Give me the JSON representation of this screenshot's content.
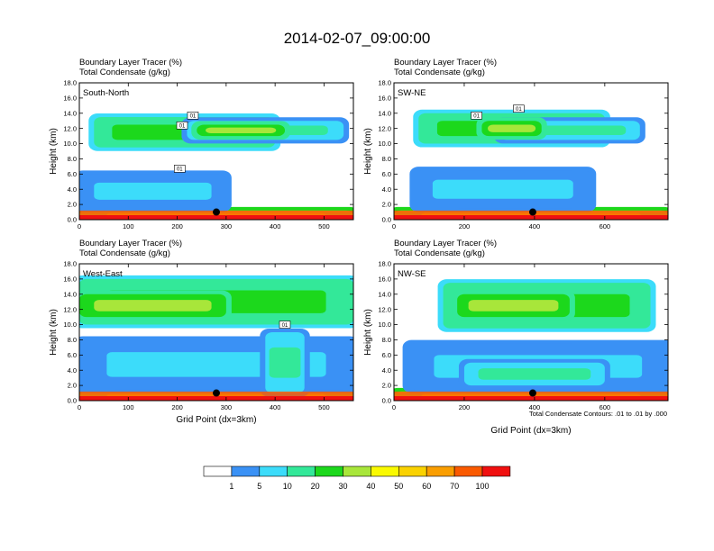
{
  "figure": {
    "title": "2014-02-07_09:00:00",
    "footnote": "Total Condensate Contours: .01 to .01 by .000"
  },
  "colorbar": {
    "levels": [
      "1",
      "5",
      "10",
      "20",
      "30",
      "40",
      "50",
      "60",
      "70",
      "100"
    ],
    "colors": [
      "#ffffff",
      "#3a91f5",
      "#3cdcfa",
      "#33e899",
      "#1cd81c",
      "#a8e63a",
      "#fafa00",
      "#fad200",
      "#fa9e00",
      "#fa5a00",
      "#f01010"
    ]
  },
  "chart_data": [
    {
      "type": "heatmap",
      "panel": "South-North",
      "line1": "Boundary Layer Tracer   (%)",
      "line2": "Total Condensate   (g/kg)",
      "ylabel": "Height (km)",
      "xlabel": "",
      "xlim": [
        0,
        560
      ],
      "ylim": [
        0,
        18
      ],
      "xticks": [
        "0",
        "100",
        "200",
        "300",
        "400",
        "500"
      ],
      "xtick_values": [
        0,
        100,
        200,
        300,
        400,
        500
      ],
      "yticks": [
        "0.0",
        "2.0",
        "4.0",
        "6.0",
        "8.0",
        "10.0",
        "12.0",
        "14.0",
        "16.0",
        "18.0"
      ],
      "contour_labels": [
        {
          "text": "01",
          "x": 232,
          "y": 13.7
        },
        {
          "text": "01",
          "x": 210,
          "y": 12.4
        },
        {
          "text": "01",
          "x": 205,
          "y": 6.7
        }
      ],
      "marker": {
        "x": 280,
        "y": 1.0
      },
      "bands": [
        {
          "level": 6,
          "x0": 0,
          "x1": 560,
          "y0": 0.0,
          "y1": 1.2
        },
        {
          "level": 4,
          "x0": 30,
          "x1": 400,
          "y0": 9.5,
          "y1": 13.5
        },
        {
          "level": 3,
          "x0": 220,
          "x1": 540,
          "y0": 10.5,
          "y1": 13.0
        },
        {
          "level": 2,
          "x0": 0,
          "x1": 300,
          "y0": 1.5,
          "y1": 6.0
        },
        {
          "level": 5,
          "x0": 240,
          "x1": 420,
          "y0": 11.0,
          "y1": 12.5
        }
      ]
    },
    {
      "type": "heatmap",
      "panel": "SW-NE",
      "line1": "Boundary Layer Tracer   (%)",
      "line2": "Total Condensate   (g/kg)",
      "ylabel": "Height (km)",
      "xlabel": "",
      "xlim": [
        0,
        780
      ],
      "ylim": [
        0,
        18
      ],
      "xticks": [
        "0",
        "200",
        "400",
        "600"
      ],
      "xtick_values": [
        0,
        200,
        400,
        600
      ],
      "yticks": [
        "0.0",
        "2.0",
        "4.0",
        "6.0",
        "8.0",
        "10.0",
        "12.0",
        "14.0",
        "16.0",
        "18.0"
      ],
      "contour_labels": [
        {
          "text": "01",
          "x": 355,
          "y": 14.6
        },
        {
          "text": "01",
          "x": 235,
          "y": 13.7
        }
      ],
      "marker": {
        "x": 395,
        "y": 1.0
      },
      "bands": [
        {
          "level": 6,
          "x0": 0,
          "x1": 780,
          "y0": 0.0,
          "y1": 1.2
        },
        {
          "level": 4,
          "x0": 70,
          "x1": 600,
          "y0": 10.0,
          "y1": 14.0
        },
        {
          "level": 3,
          "x0": 300,
          "x1": 700,
          "y0": 10.5,
          "y1": 13.0
        },
        {
          "level": 2,
          "x0": 60,
          "x1": 560,
          "y0": 1.5,
          "y1": 6.5
        },
        {
          "level": 5,
          "x0": 250,
          "x1": 420,
          "y0": 11.0,
          "y1": 13.0
        }
      ]
    },
    {
      "type": "heatmap",
      "panel": "West-East",
      "line1": "Boundary Layer Tracer   (%)",
      "line2": "Total Condensate   (g/kg)",
      "ylabel": "Height (km)",
      "xlabel": "Grid Point (dx=3km)",
      "xlim": [
        0,
        560
      ],
      "ylim": [
        0,
        18
      ],
      "xticks": [
        "0",
        "100",
        "200",
        "300",
        "400",
        "500"
      ],
      "xtick_values": [
        0,
        100,
        200,
        300,
        400,
        500
      ],
      "yticks": [
        "0.0",
        "2.0",
        "4.0",
        "6.0",
        "8.0",
        "10.0",
        "12.0",
        "14.0",
        "16.0",
        "18.0"
      ],
      "contour_labels": [
        {
          "text": "01",
          "x": 420,
          "y": 10.0
        }
      ],
      "marker": {
        "x": 280,
        "y": 1.0
      },
      "bands": [
        {
          "level": 6,
          "x0": 0,
          "x1": 560,
          "y0": 0.0,
          "y1": 1.2
        },
        {
          "level": 4,
          "x0": 0,
          "x1": 560,
          "y0": 10.0,
          "y1": 16.0
        },
        {
          "level": 5,
          "x0": 0,
          "x1": 300,
          "y0": 11.0,
          "y1": 14.0
        },
        {
          "level": 2,
          "x0": 0,
          "x1": 560,
          "y0": 1.5,
          "y1": 8.0
        },
        {
          "level": 3,
          "x0": 380,
          "x1": 460,
          "y0": 1.0,
          "y1": 9.0
        }
      ]
    },
    {
      "type": "heatmap",
      "panel": "NW-SE",
      "line1": "Boundary Layer Tracer   (%)",
      "line2": "Total Condensate   (g/kg)",
      "ylabel": "Height (km)",
      "xlabel": "Grid Point (dx=3km)",
      "xlim": [
        0,
        780
      ],
      "ylim": [
        0,
        18
      ],
      "xticks": [
        "0",
        "200",
        "400",
        "600"
      ],
      "xtick_values": [
        0,
        200,
        400,
        600
      ],
      "yticks": [
        "0.0",
        "2.0",
        "4.0",
        "6.0",
        "8.0",
        "10.0",
        "12.0",
        "14.0",
        "16.0",
        "18.0"
      ],
      "contour_labels": [],
      "marker": {
        "x": 395,
        "y": 1.0
      },
      "bands": [
        {
          "level": 6,
          "x0": 0,
          "x1": 780,
          "y0": 0.0,
          "y1": 1.2
        },
        {
          "level": 4,
          "x0": 140,
          "x1": 730,
          "y0": 9.5,
          "y1": 15.5
        },
        {
          "level": 5,
          "x0": 180,
          "x1": 500,
          "y0": 11.0,
          "y1": 14.0
        },
        {
          "level": 2,
          "x0": 40,
          "x1": 780,
          "y0": 1.5,
          "y1": 7.5
        },
        {
          "level": 3,
          "x0": 200,
          "x1": 600,
          "y0": 2.0,
          "y1": 5.0
        }
      ]
    }
  ]
}
